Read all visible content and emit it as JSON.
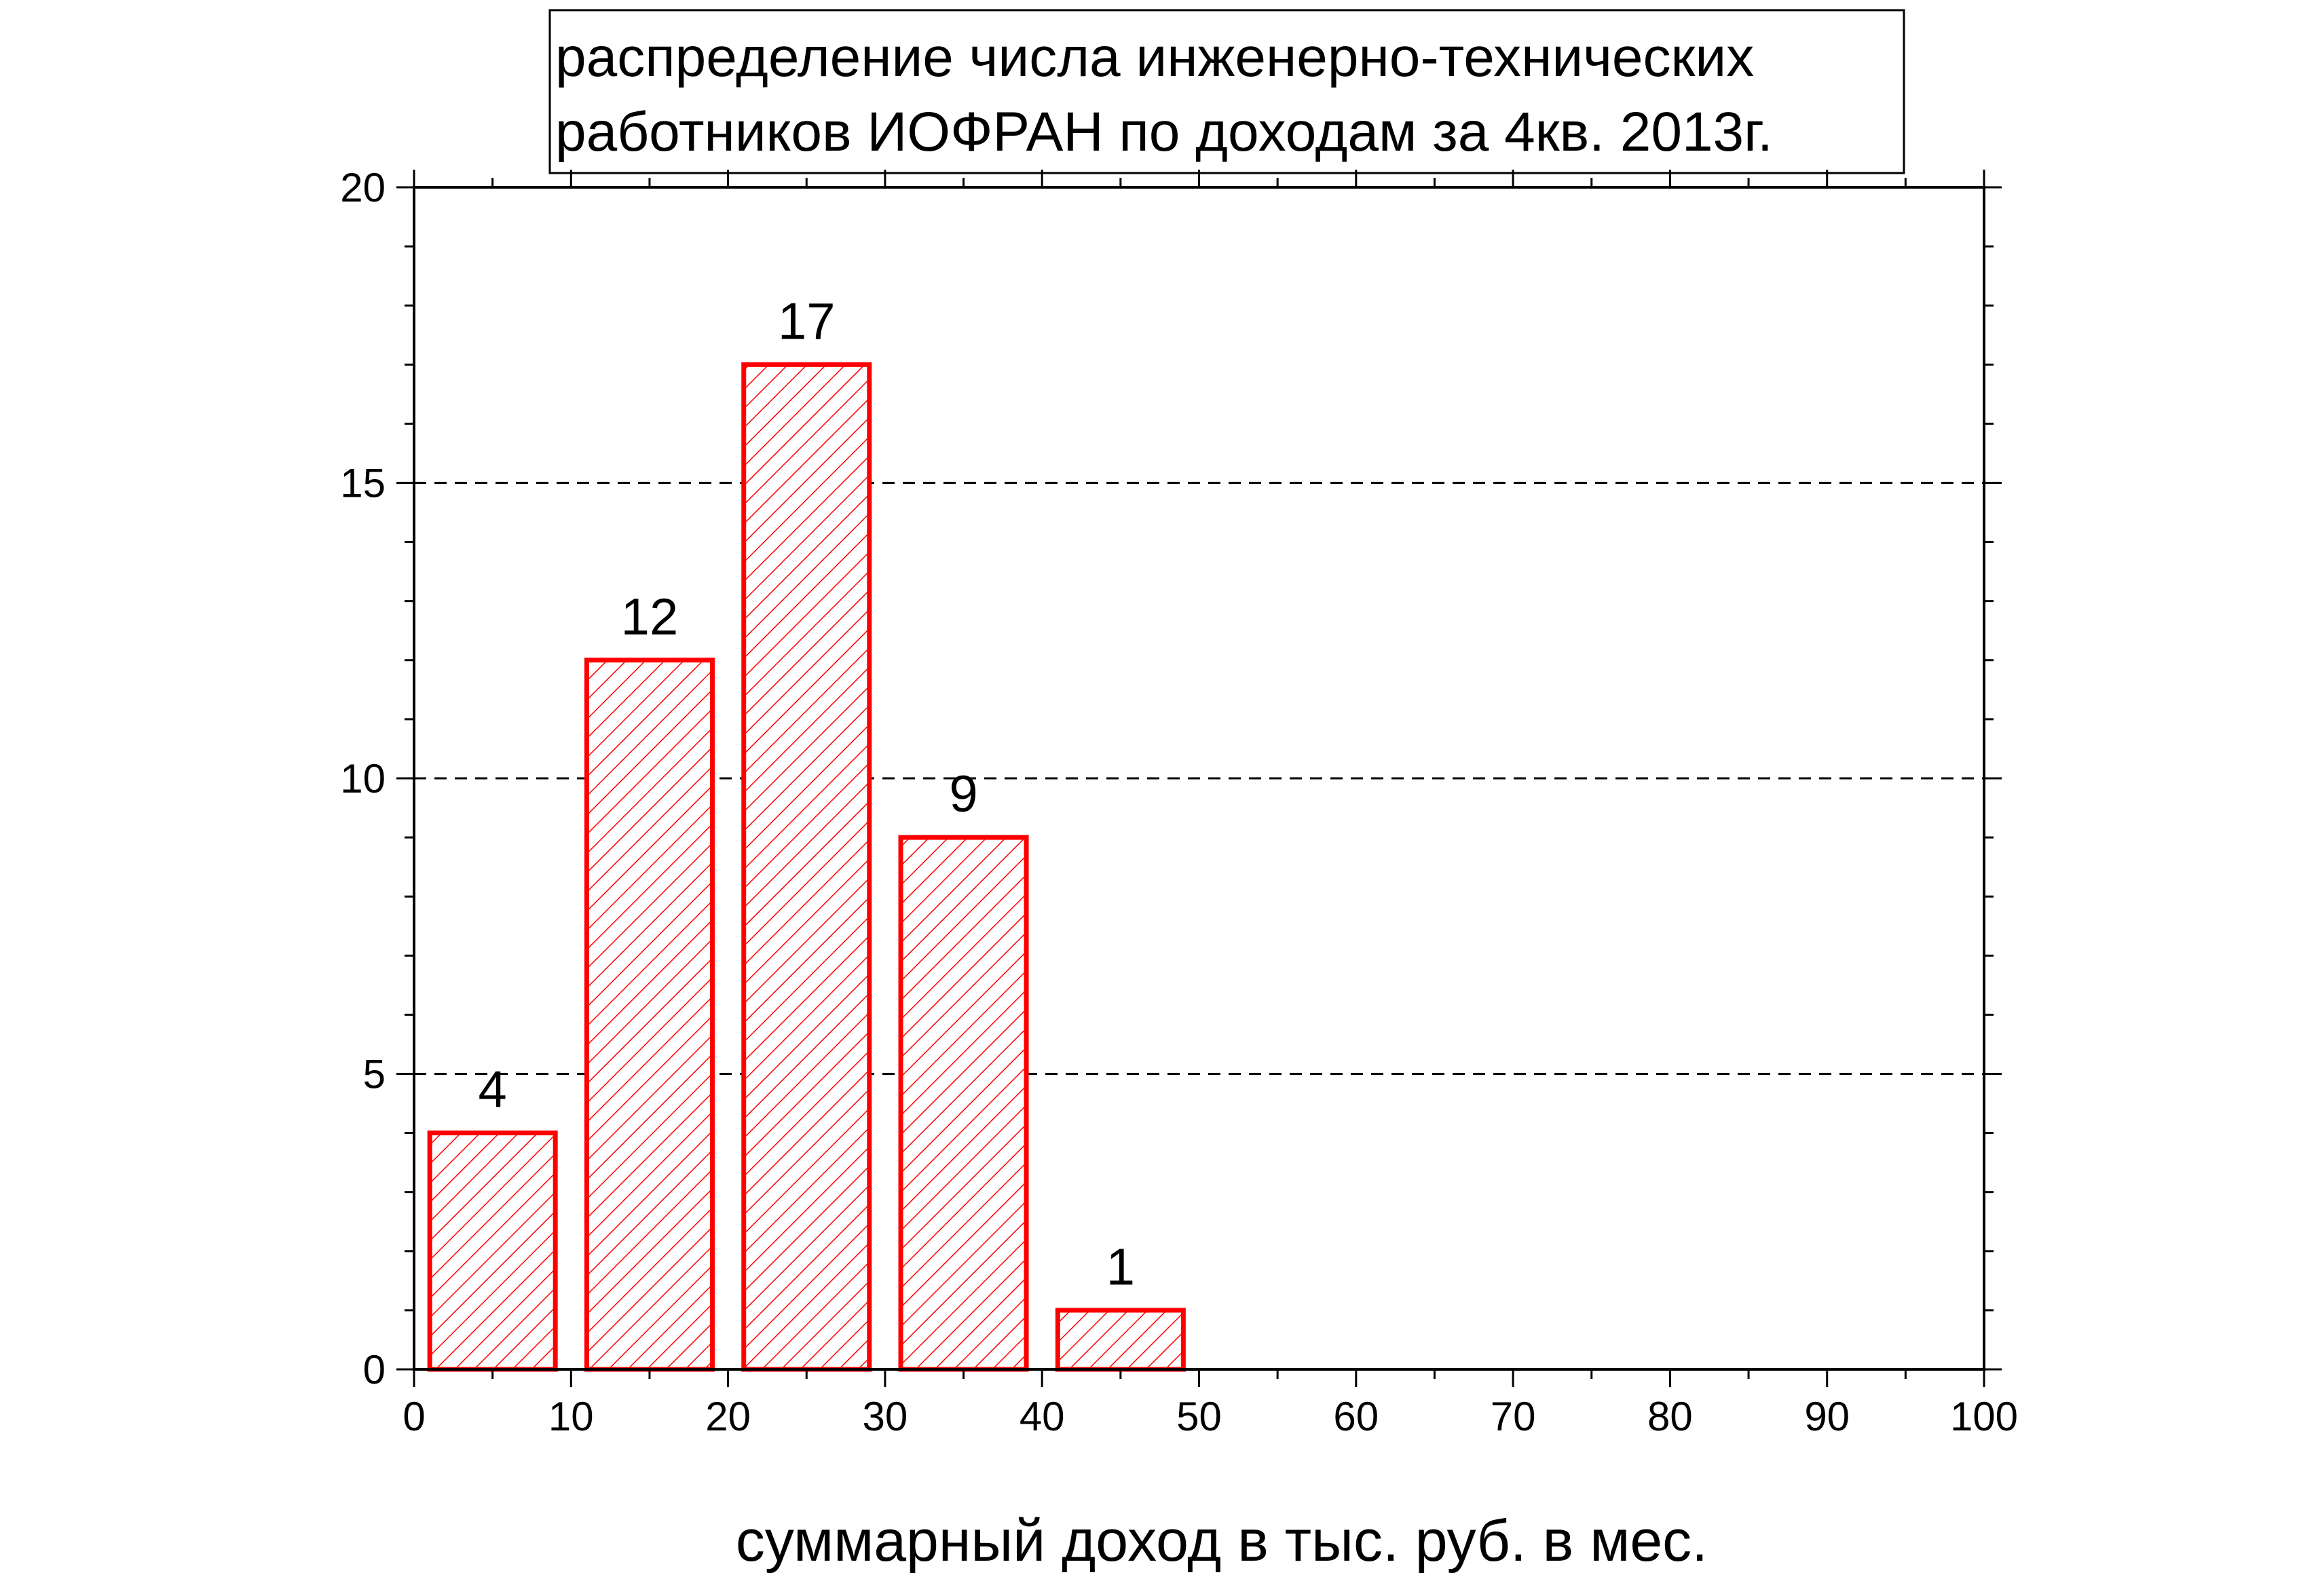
{
  "chart_data": {
    "type": "bar",
    "title_lines": [
      "распределение числа инженерно-технических",
      "работников ИОФРАН по доходам за 4кв. 2013г."
    ],
    "xlabel": "суммарный доход в тыс. руб. в мес.",
    "ylabel": "",
    "xlim": [
      0,
      100
    ],
    "ylim": [
      0,
      20
    ],
    "xticks": [
      "0",
      "10",
      "20",
      "30",
      "40",
      "50",
      "60",
      "70",
      "80",
      "90",
      "100"
    ],
    "yticks": [
      "0",
      "5",
      "10",
      "15",
      "20"
    ],
    "grid": "dashed horizontal at 5, 10, 15",
    "bars": [
      {
        "x0": 1,
        "x1": 9,
        "value": 4,
        "label": "4"
      },
      {
        "x0": 11,
        "x1": 19,
        "value": 12,
        "label": "12"
      },
      {
        "x0": 21,
        "x1": 29,
        "value": 17,
        "label": "17"
      },
      {
        "x0": 31,
        "x1": 39,
        "value": 9,
        "label": "9"
      },
      {
        "x0": 41,
        "x1": 49,
        "value": 1,
        "label": "1"
      }
    ],
    "bar_color": "#ff0000",
    "bar_fill_pattern": "diagonal hatch"
  }
}
